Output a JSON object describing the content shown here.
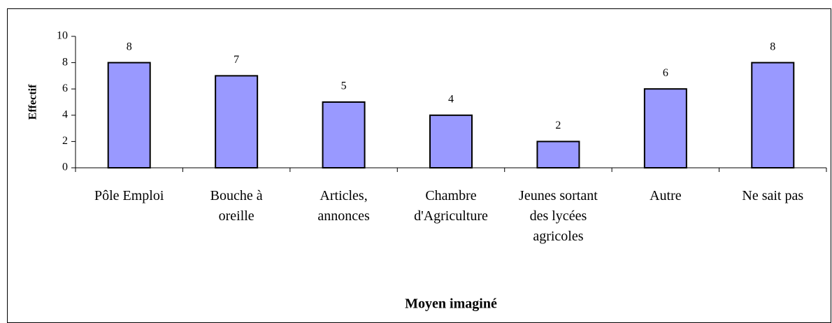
{
  "chart_data": {
    "type": "bar",
    "x_label": "Moyen imaginé",
    "y_label": "Effectif",
    "categories": [
      "Pôle Emploi",
      "Bouche à oreille",
      "Articles, annonces",
      "Chambre d'Agriculture",
      "Jeunes sortant des lycées agricoles",
      "Autre",
      "Ne sait pas"
    ],
    "values": [
      8,
      7,
      5,
      4,
      2,
      6,
      8
    ],
    "color": "#9999ff",
    "ylim": [
      0,
      10
    ],
    "yticks": [
      0,
      2,
      4,
      6,
      8,
      10
    ]
  }
}
